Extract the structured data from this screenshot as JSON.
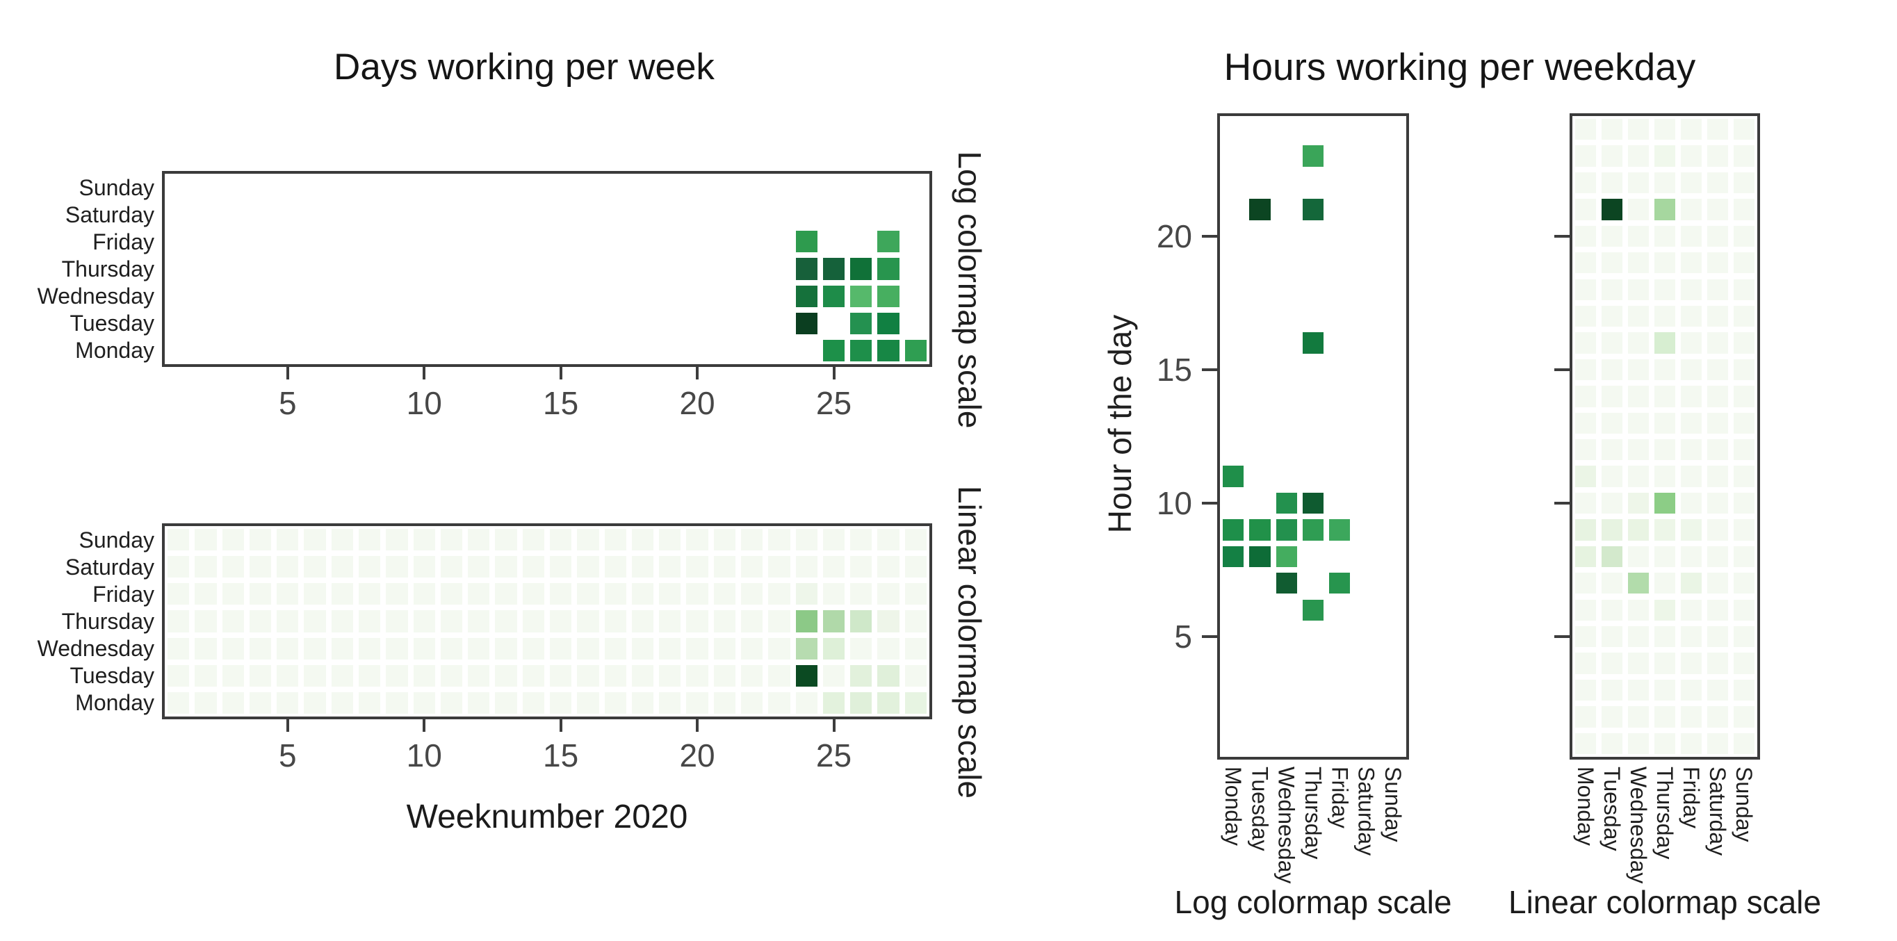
{
  "style": {
    "figure_background": "#ffffff",
    "axis_border_color": "#3b3b3b",
    "tick_mark_color": "#3d3d3d",
    "tick_number_color": "#474747",
    "text_color": "#1b1b1b",
    "colormap": "Greens",
    "colormap_darkest": "#0b3e20",
    "colormap_lightest": "#f4f9f1"
  },
  "chart_data": [
    {
      "id": "days-per-week-log",
      "type": "heatmap",
      "figure_title": "Days working per week",
      "side_label": "Log colormap scale",
      "rows_top_to_bottom": [
        "Sunday",
        "Saturday",
        "Friday",
        "Thursday",
        "Wednesday",
        "Tuesday",
        "Monday"
      ],
      "x_axis": {
        "unit": "weeknumber",
        "range": [
          1,
          28
        ],
        "tick_values": [
          5,
          10,
          15,
          20,
          25
        ],
        "tick_labels": [
          "5",
          "10",
          "15",
          "20",
          "25"
        ]
      },
      "empty_cell_color": "#ffffff",
      "cells": [
        {
          "day": "Friday",
          "week": 24,
          "color": "#2e9b4e"
        },
        {
          "day": "Friday",
          "week": 27,
          "color": "#3ea75b"
        },
        {
          "day": "Thursday",
          "week": 24,
          "color": "#17603a"
        },
        {
          "day": "Thursday",
          "week": 25,
          "color": "#15613a"
        },
        {
          "day": "Thursday",
          "week": 26,
          "color": "#107138"
        },
        {
          "day": "Thursday",
          "week": 27,
          "color": "#28954e"
        },
        {
          "day": "Wednesday",
          "week": 24,
          "color": "#15713b"
        },
        {
          "day": "Wednesday",
          "week": 25,
          "color": "#1e8c49"
        },
        {
          "day": "Wednesday",
          "week": 26,
          "color": "#56b96b"
        },
        {
          "day": "Wednesday",
          "week": 27,
          "color": "#47af60"
        },
        {
          "day": "Tuesday",
          "week": 24,
          "color": "#0b3e20"
        },
        {
          "day": "Tuesday",
          "week": 26,
          "color": "#249150"
        },
        {
          "day": "Tuesday",
          "week": 27,
          "color": "#118042"
        },
        {
          "day": "Monday",
          "week": 25,
          "color": "#1d9049"
        },
        {
          "day": "Monday",
          "week": 26,
          "color": "#1e8f4a"
        },
        {
          "day": "Monday",
          "week": 27,
          "color": "#178745"
        },
        {
          "day": "Monday",
          "week": 28,
          "color": "#2f9e52"
        }
      ]
    },
    {
      "id": "days-per-week-linear",
      "type": "heatmap",
      "xlabel": "Weeknumber 2020",
      "side_label": "Linear colormap scale",
      "rows_top_to_bottom": [
        "Sunday",
        "Saturday",
        "Friday",
        "Thursday",
        "Wednesday",
        "Tuesday",
        "Monday"
      ],
      "x_axis": {
        "unit": "weeknumber",
        "range": [
          1,
          28
        ],
        "tick_values": [
          5,
          10,
          15,
          20,
          25
        ],
        "tick_labels": [
          "5",
          "10",
          "15",
          "20",
          "25"
        ]
      },
      "background_cell_color": "#f4f9f1",
      "cells": [
        {
          "day": "Friday",
          "week": 24,
          "color": "#eef6ea"
        },
        {
          "day": "Thursday",
          "week": 24,
          "color": "#8cc987"
        },
        {
          "day": "Thursday",
          "week": 25,
          "color": "#b0d9a9"
        },
        {
          "day": "Thursday",
          "week": 26,
          "color": "#cfe8c9"
        },
        {
          "day": "Thursday",
          "week": 27,
          "color": "#eef5e9"
        },
        {
          "day": "Wednesday",
          "week": 24,
          "color": "#b7dcb0"
        },
        {
          "day": "Wednesday",
          "week": 25,
          "color": "#def0d8"
        },
        {
          "day": "Tuesday",
          "week": 24,
          "color": "#0b4a22"
        },
        {
          "day": "Tuesday",
          "week": 26,
          "color": "#e2f1dc"
        },
        {
          "day": "Tuesday",
          "week": 27,
          "color": "#e0f0da"
        },
        {
          "day": "Monday",
          "week": 25,
          "color": "#e3f2dd"
        },
        {
          "day": "Monday",
          "week": 26,
          "color": "#e0f0da"
        },
        {
          "day": "Monday",
          "week": 27,
          "color": "#e2f1dc"
        },
        {
          "day": "Monday",
          "week": 28,
          "color": "#e7f4e2"
        }
      ]
    },
    {
      "id": "hours-per-weekday-log",
      "type": "heatmap",
      "figure_title": "Hours working per weekday",
      "ylabel": "Hour of the day",
      "caption": "Log colormap scale",
      "columns_left_to_right": [
        "Monday",
        "Tuesday",
        "Wednesday",
        "Thursday",
        "Friday",
        "Saturday",
        "Sunday"
      ],
      "y_axis": {
        "unit": "hour",
        "range": [
          1,
          24
        ],
        "tick_values": [
          5,
          10,
          15,
          20
        ],
        "tick_labels": [
          "5",
          "10",
          "15",
          "20"
        ]
      },
      "empty_cell_color": "#ffffff",
      "cells": [
        {
          "day": "Thursday",
          "hour": 23,
          "color": "#3aa559"
        },
        {
          "day": "Tuesday",
          "hour": 21,
          "color": "#0c4522"
        },
        {
          "day": "Thursday",
          "hour": 21,
          "color": "#14673a"
        },
        {
          "day": "Thursday",
          "hour": 16,
          "color": "#127a3e"
        },
        {
          "day": "Monday",
          "hour": 11,
          "color": "#1f8f4a"
        },
        {
          "day": "Wednesday",
          "hour": 10,
          "color": "#23914e"
        },
        {
          "day": "Thursday",
          "hour": 10,
          "color": "#0f5b30"
        },
        {
          "day": "Monday",
          "hour": 9,
          "color": "#1e8f4a"
        },
        {
          "day": "Tuesday",
          "hour": 9,
          "color": "#219149"
        },
        {
          "day": "Wednesday",
          "hour": 9,
          "color": "#23914e"
        },
        {
          "day": "Thursday",
          "hour": 9,
          "color": "#2f9d53"
        },
        {
          "day": "Friday",
          "hour": 9,
          "color": "#3ca75c"
        },
        {
          "day": "Monday",
          "hour": 8,
          "color": "#148044"
        },
        {
          "day": "Tuesday",
          "hour": 8,
          "color": "#0e6c37"
        },
        {
          "day": "Wednesday",
          "hour": 8,
          "color": "#44ad5f"
        },
        {
          "day": "Wednesday",
          "hour": 7,
          "color": "#115c31"
        },
        {
          "day": "Friday",
          "hour": 7,
          "color": "#27954e"
        },
        {
          "day": "Thursday",
          "hour": 6,
          "color": "#29964f"
        }
      ]
    },
    {
      "id": "hours-per-weekday-linear",
      "type": "heatmap",
      "caption": "Linear colormap scale",
      "columns_left_to_right": [
        "Monday",
        "Tuesday",
        "Wednesday",
        "Thursday",
        "Friday",
        "Saturday",
        "Sunday"
      ],
      "y_axis": {
        "unit": "hour",
        "range": [
          1,
          24
        ],
        "tick_values": [
          5,
          10,
          15,
          20
        ],
        "tick_labels": [
          "5",
          "10",
          "15",
          "20"
        ]
      },
      "background_cell_color": "#f4f9f1",
      "cells": [
        {
          "day": "Thursday",
          "hour": 23,
          "color": "#f0f8ec"
        },
        {
          "day": "Tuesday",
          "hour": 21,
          "color": "#0c4522"
        },
        {
          "day": "Thursday",
          "hour": 21,
          "color": "#a6d79f"
        },
        {
          "day": "Thursday",
          "hour": 16,
          "color": "#d7eed1"
        },
        {
          "day": "Monday",
          "hour": 11,
          "color": "#ebf5e6"
        },
        {
          "day": "Wednesday",
          "hour": 10,
          "color": "#eef6e9"
        },
        {
          "day": "Thursday",
          "hour": 10,
          "color": "#8ccd86"
        },
        {
          "day": "Monday",
          "hour": 9,
          "color": "#e7f3e1"
        },
        {
          "day": "Tuesday",
          "hour": 9,
          "color": "#e7f3e1"
        },
        {
          "day": "Wednesday",
          "hour": 9,
          "color": "#e9f4e3"
        },
        {
          "day": "Thursday",
          "hour": 9,
          "color": "#edf6e8"
        },
        {
          "day": "Friday",
          "hour": 9,
          "color": "#eef7ea"
        },
        {
          "day": "Monday",
          "hour": 8,
          "color": "#e6f3e0"
        },
        {
          "day": "Tuesday",
          "hour": 8,
          "color": "#d3e9cc"
        },
        {
          "day": "Wednesday",
          "hour": 7,
          "color": "#b2dcab"
        },
        {
          "day": "Friday",
          "hour": 7,
          "color": "#eaf5e5"
        },
        {
          "day": "Thursday",
          "hour": 6,
          "color": "#edf6e8"
        }
      ]
    }
  ]
}
